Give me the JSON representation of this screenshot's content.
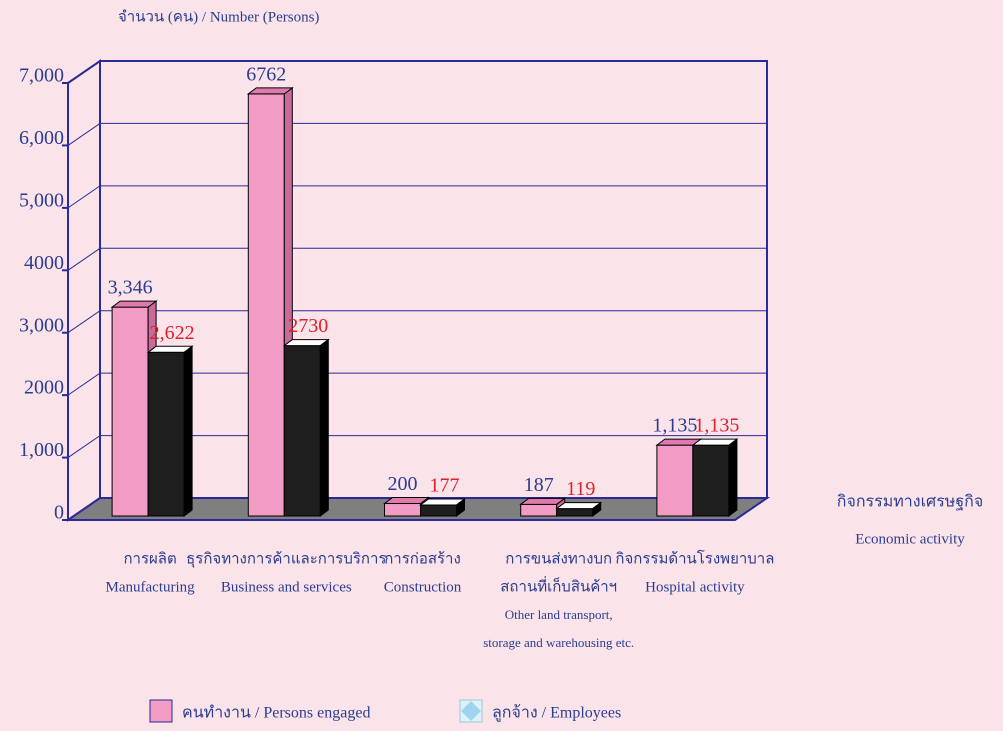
{
  "chart_data": {
    "type": "bar3d",
    "y_label": "จำนวน (คน) / Number (Persons)",
    "x_label": [
      "กิจกรรมทางเศรษฐกิจ",
      "Economic activity"
    ],
    "categories": [
      [
        "การผลิต",
        "Manufacturing"
      ],
      [
        "ธุรกิจทางการค้าและการบริการ",
        "Business and services"
      ],
      [
        "การก่อสร้าง",
        "Construction"
      ],
      [
        "การขนส่งทางบก",
        "สถานที่เก็บสินค้าฯ",
        "Other land transport,",
        "storage and warehousing etc."
      ],
      [
        "กิจกรรมด้านโรงพยาบาล",
        "Hospital activity"
      ]
    ],
    "series": [
      {
        "name": "คนทำงาน / Persons engaged",
        "color": "#f29bc4",
        "label_color": "#2a3d8f",
        "values": [
          3346,
          6762,
          200,
          187,
          1135
        ],
        "value_labels": [
          "3,346",
          "6762",
          "200",
          "187",
          "1,135"
        ]
      },
      {
        "name": "ลูกจ้าง /  Employees",
        "color": "#1e1e1e",
        "label_color": "#e0202a",
        "values": [
          2622,
          2730,
          177,
          119,
          1135
        ],
        "value_labels": [
          "2,622",
          "2730",
          "177",
          "119",
          "1,135"
        ]
      }
    ],
    "ylim": [
      0,
      7000
    ],
    "yticks": [
      0,
      {
        "value": 1000,
        "label": "1,000"
      },
      2000,
      {
        "value": 3000,
        "label": "3,000"
      },
      4000,
      {
        "value": 5000,
        "label": "5,000"
      },
      {
        "value": 6000,
        "label": "6,000"
      },
      {
        "value": 7000,
        "label": "7,000"
      }
    ],
    "grid": true
  }
}
